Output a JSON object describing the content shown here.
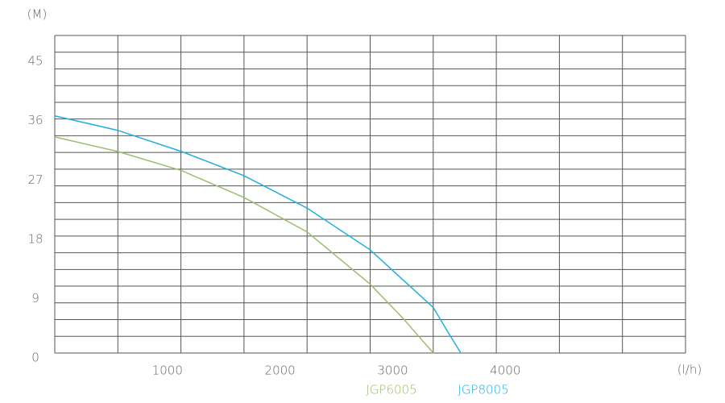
{
  "chart_data": {
    "type": "line",
    "y_unit_label": "(M)",
    "x_unit_label": "(l/h)",
    "xlim": [
      0,
      5600
    ],
    "xticks": [
      1000,
      2000,
      3000,
      4000
    ],
    "ylim": [
      0,
      48.2
    ],
    "yticks": [
      0,
      9,
      18,
      27,
      36,
      45
    ],
    "grid": true,
    "series": [
      {
        "name": "JGP6005",
        "color": "#9cbd6e",
        "x": [
          0,
          558,
          1123,
          1681,
          2239,
          2797,
          3090,
          3361
        ],
        "values": [
          32.8,
          30.6,
          27.7,
          23.6,
          18.4,
          10.5,
          5.3,
          0
        ]
      },
      {
        "name": "JGP8005",
        "color": "#1fb0e0",
        "x": [
          0,
          558,
          1123,
          1681,
          2239,
          2797,
          3361,
          3483,
          3605
        ],
        "values": [
          36,
          33.8,
          30.6,
          26.9,
          22.0,
          15.7,
          6.9,
          3.4,
          0
        ]
      }
    ]
  }
}
